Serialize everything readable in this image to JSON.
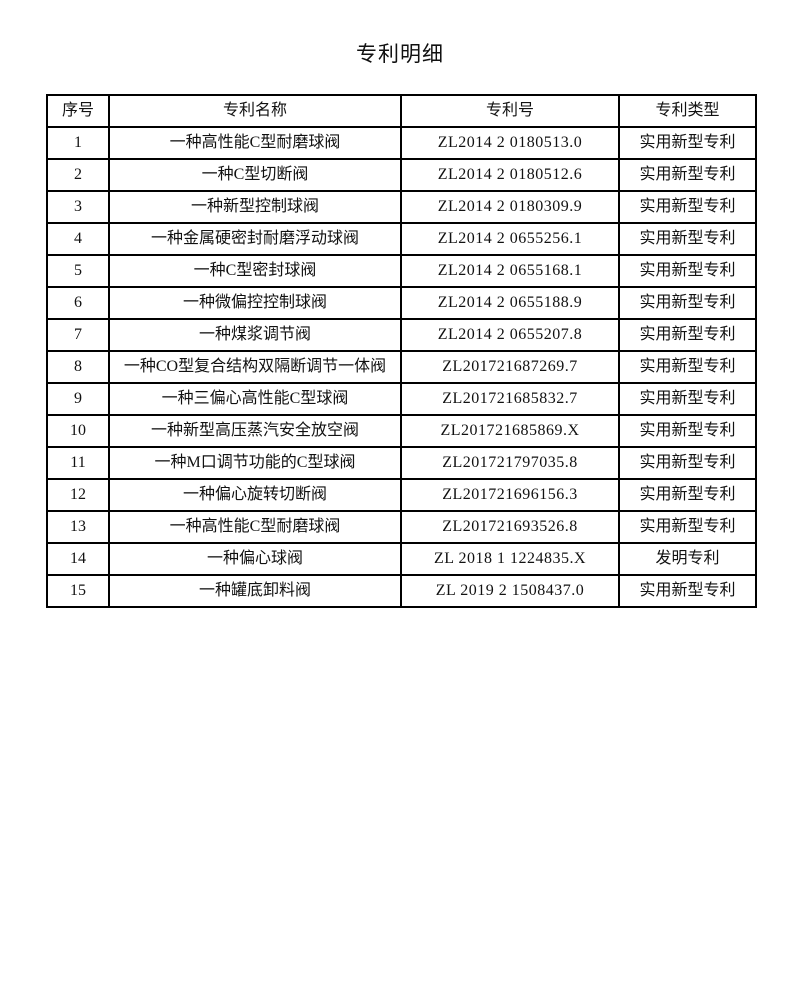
{
  "page": {
    "title": "专利明细"
  },
  "table": {
    "headers": {
      "no": "序号",
      "name": "专利名称",
      "number": "专利号",
      "type": "专利类型"
    },
    "rows": [
      {
        "no": "1",
        "name": "一种高性能C型耐磨球阀",
        "number": "ZL2014 2 0180513.0",
        "type": "实用新型专利"
      },
      {
        "no": "2",
        "name": "一种C型切断阀",
        "number": "ZL2014 2 0180512.6",
        "type": "实用新型专利"
      },
      {
        "no": "3",
        "name": "一种新型控制球阀",
        "number": "ZL2014 2 0180309.9",
        "type": "实用新型专利"
      },
      {
        "no": "4",
        "name": "一种金属硬密封耐磨浮动球阀",
        "number": "ZL2014 2 0655256.1",
        "type": "实用新型专利"
      },
      {
        "no": "5",
        "name": "一种C型密封球阀",
        "number": "ZL2014 2 0655168.1",
        "type": "实用新型专利"
      },
      {
        "no": "6",
        "name": "一种微偏控控制球阀",
        "number": "ZL2014 2 0655188.9",
        "type": "实用新型专利"
      },
      {
        "no": "7",
        "name": "一种煤浆调节阀",
        "number": "ZL2014 2 0655207.8",
        "type": "实用新型专利"
      },
      {
        "no": "8",
        "name": "一种CO型复合结构双隔断调节一体阀",
        "number": "ZL201721687269.7",
        "type": "实用新型专利"
      },
      {
        "no": "9",
        "name": "一种三偏心高性能C型球阀",
        "number": "ZL201721685832.7",
        "type": "实用新型专利"
      },
      {
        "no": "10",
        "name": "一种新型高压蒸汽安全放空阀",
        "number": "ZL201721685869.X",
        "type": "实用新型专利"
      },
      {
        "no": "11",
        "name": "一种M口调节功能的C型球阀",
        "number": "ZL201721797035.8",
        "type": "实用新型专利"
      },
      {
        "no": "12",
        "name": "一种偏心旋转切断阀",
        "number": "ZL201721696156.3",
        "type": "实用新型专利"
      },
      {
        "no": "13",
        "name": "一种高性能C型耐磨球阀",
        "number": "ZL201721693526.8",
        "type": "实用新型专利"
      },
      {
        "no": "14",
        "name": "一种偏心球阀",
        "number": "ZL 2018 1 1224835.X",
        "type": "发明专利"
      },
      {
        "no": "15",
        "name": "一种罐底卸料阀",
        "number": "ZL 2019 2 1508437.0",
        "type": "实用新型专利"
      }
    ]
  }
}
